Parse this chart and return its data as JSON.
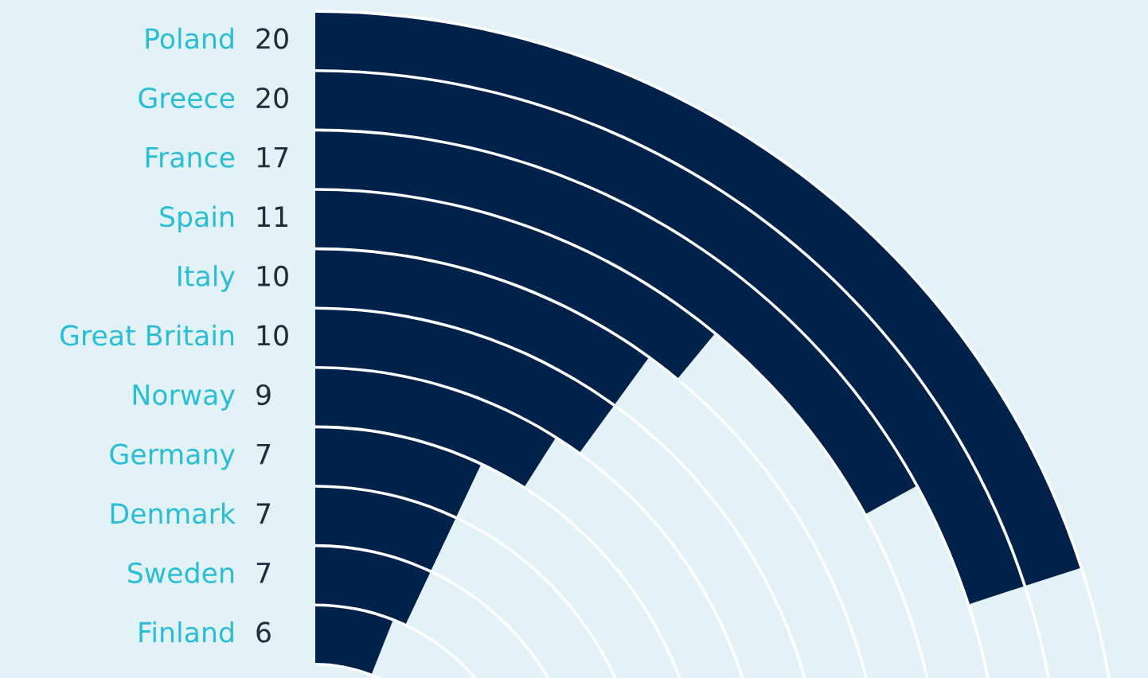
{
  "chart_data": {
    "type": "other",
    "categories": [
      "Poland",
      "Greece",
      "France",
      "Spain",
      "Italy",
      "Great Britain",
      "Norway",
      "Germany",
      "Denmark",
      "Sweden",
      "Finland"
    ],
    "values": [
      20,
      20,
      17,
      11,
      10,
      10,
      9,
      7,
      7,
      7,
      6
    ],
    "color": "#00214a",
    "data_labels": true
  }
}
